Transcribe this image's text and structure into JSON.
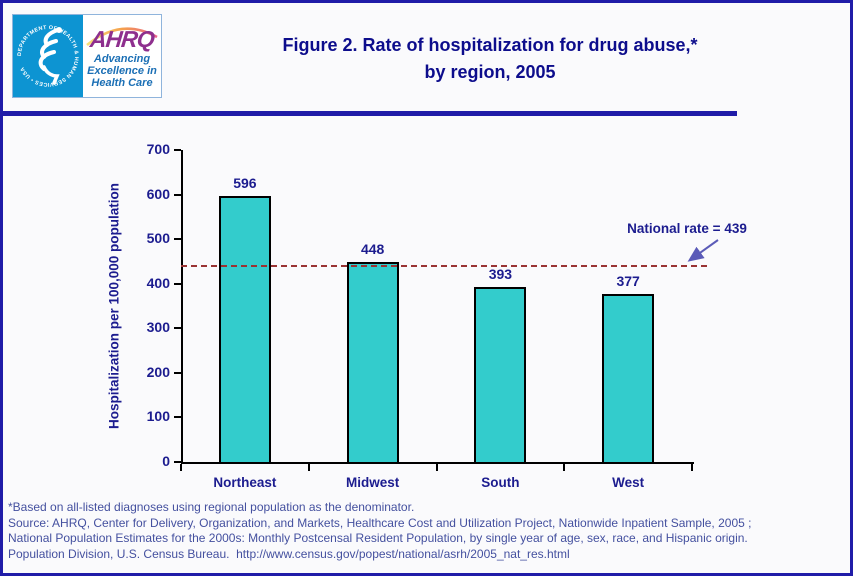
{
  "page": {
    "background": "#FAFAFC",
    "border_color": "#201CA8"
  },
  "header": {
    "title_line1": "Figure 2. Rate of hospitalization for drug abuse,*",
    "title_line2": "by region, 2005",
    "title_color": "#0D0D8C",
    "logo": {
      "hhs_ring_text": "DEPARTMENT OF HEALTH & HUMAN SERVICES • USA",
      "ahrq_acronym": "AHRQ",
      "tagline_line1": "Advancing",
      "tagline_line2": "Excellence in",
      "tagline_line3": "Health Care",
      "ahrq_purple": "#8E2F8E",
      "hhs_blue": "#0D94D2",
      "tagline_blue": "#1B6FB5"
    }
  },
  "chart_data": {
    "type": "bar",
    "title": "Figure 2. Rate of hospitalization for drug abuse,* by region, 2005",
    "categories": [
      "Northeast",
      "Midwest",
      "South",
      "West"
    ],
    "values": [
      596,
      448,
      393,
      377
    ],
    "xlabel": "",
    "ylabel": "Hospitalization per 100,000 population",
    "ylim": [
      0,
      700
    ],
    "ytick_step": 100,
    "grid": false,
    "legend": false,
    "reference_line": {
      "value": 439,
      "label": "National rate = 439",
      "color": "#993333",
      "style": "dashed"
    },
    "bar_color": "#33CCCC",
    "bar_border_color": "#000000",
    "label_color": "#1C1C8F"
  },
  "footnotes": {
    "line1": "*Based on all-listed diagnoses using regional population as the denominator.",
    "line2": "Source: AHRQ, Center for Delivery, Organization, and Markets, Healthcare Cost and Utilization Project, Nationwide Inpatient Sample, 2005 ;",
    "line3": "National Population Estimates for the 2000s: Monthly Postcensal Resident Population, by single year of age, sex, race, and Hispanic origin.",
    "line4": "Population Division, U.S. Census Bureau.  http://www.census.gov/popest/national/asrh/2005_nat_res.html"
  }
}
